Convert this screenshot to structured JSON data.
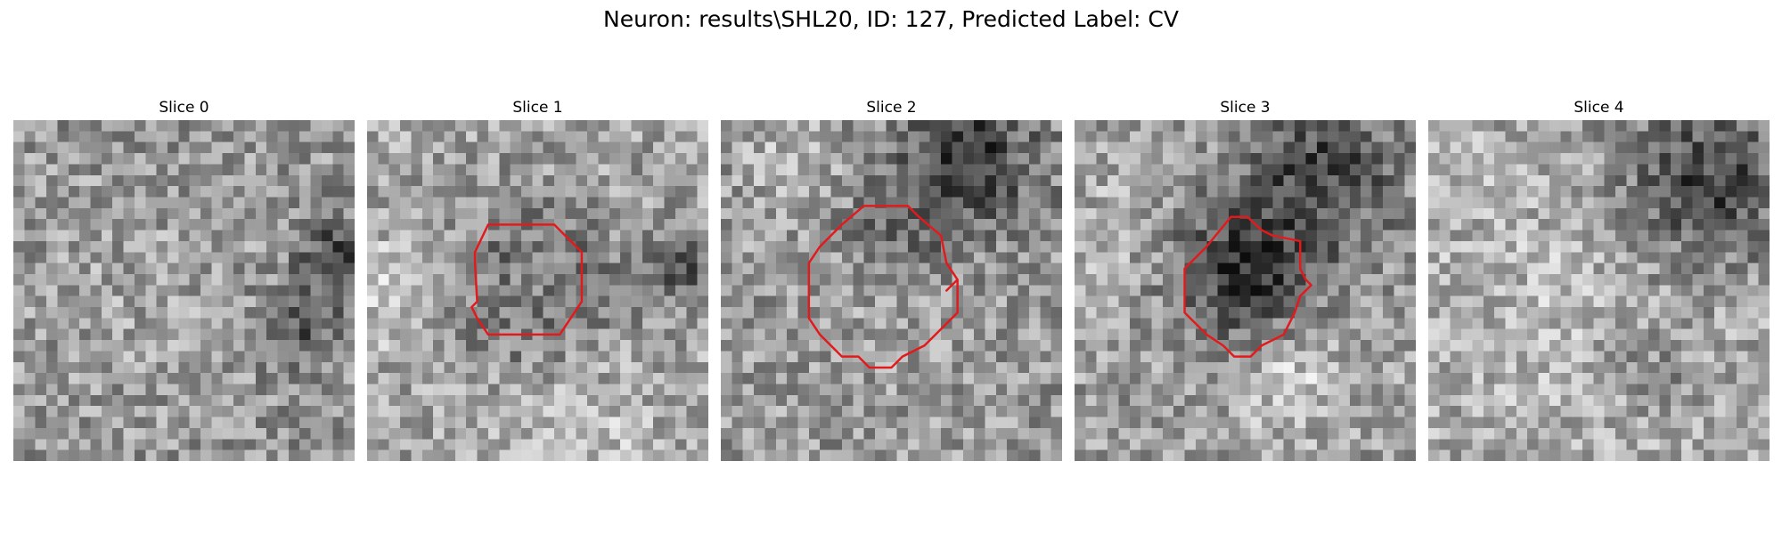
{
  "figure": {
    "title": "Neuron: results\\SHL20, ID: 127, Predicted Label: CV"
  },
  "contour_color": "#e31a1c",
  "colormap": "gray",
  "panels": [
    {
      "title": "Slice 0",
      "has_contour": false
    },
    {
      "title": "Slice 1",
      "has_contour": true
    },
    {
      "title": "Slice 2",
      "has_contour": true
    },
    {
      "title": "Slice 3",
      "has_contour": true
    },
    {
      "title": "Slice 4",
      "has_contour": false
    }
  ]
}
